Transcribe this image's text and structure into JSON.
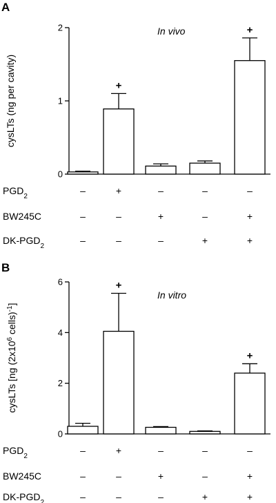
{
  "chart_data": [
    {
      "type": "bar",
      "panel": "A",
      "annotation": "In vivo",
      "ylabel": "cysLTs (ng per cavity)",
      "ylim": [
        0,
        2
      ],
      "yticks": [
        0,
        1,
        2
      ],
      "values": [
        0.03,
        0.89,
        0.11,
        0.15,
        1.55
      ],
      "errors": [
        0.01,
        0.21,
        0.03,
        0.03,
        0.31
      ],
      "significance": [
        "",
        "+",
        "",
        "",
        "+"
      ],
      "conditions": [
        {
          "label": "PGD",
          "sub": "2",
          "signs": [
            "–",
            "+",
            "–",
            "–",
            "–"
          ]
        },
        {
          "label": "BW245C",
          "sub": "",
          "signs": [
            "–",
            "–",
            "+",
            "–",
            "+"
          ]
        },
        {
          "label": "DK-PGD",
          "sub": "2",
          "signs": [
            "–",
            "–",
            "–",
            "+",
            "+"
          ]
        }
      ]
    },
    {
      "type": "bar",
      "panel": "B",
      "annotation": "In vitro",
      "ylabel_parts": [
        "cysLTs [ng (2x10",
        "6",
        " cells)",
        "-1",
        "]"
      ],
      "ylim": [
        0,
        6
      ],
      "yticks": [
        0,
        2,
        4,
        6
      ],
      "values": [
        0.3,
        4.05,
        0.26,
        0.1,
        2.4
      ],
      "errors": [
        0.12,
        1.5,
        0.03,
        0.02,
        0.37
      ],
      "significance": [
        "",
        "+",
        "",
        "",
        "+"
      ],
      "conditions": [
        {
          "label": "PGD",
          "sub": "2",
          "signs": [
            "–",
            "+",
            "–",
            "–",
            "–"
          ]
        },
        {
          "label": "BW245C",
          "sub": "",
          "signs": [
            "–",
            "–",
            "+",
            "–",
            "+"
          ]
        },
        {
          "label": "DK-PGD",
          "sub": "2",
          "signs": [
            "–",
            "–",
            "–",
            "+",
            "+"
          ]
        }
      ]
    }
  ],
  "colors": {
    "bar_fill": "#ffffff",
    "stroke": "#000000"
  }
}
